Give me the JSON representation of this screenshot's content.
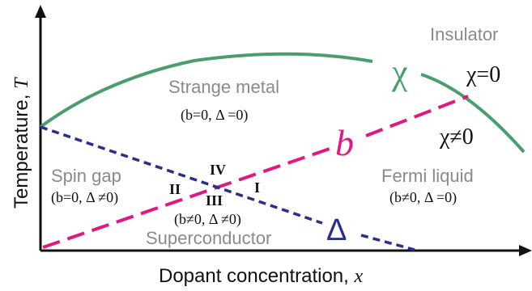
{
  "axes": {
    "y_label_text": "Temperature, ",
    "y_label_var": "T",
    "x_label_text": "Dopant concentration, ",
    "x_label_var": "x"
  },
  "curve_labels": {
    "chi": "χ",
    "b": "b",
    "delta": "Δ"
  },
  "regions": {
    "insulator": "Insulator",
    "chi_zero": "χ=0",
    "chi_nonzero": "χ≠0",
    "strange_metal": "Strange metal",
    "strange_metal_params": "(b=0, Δ =0)",
    "spin_gap": "Spin gap",
    "spin_gap_params": "(b=0, Δ ≠0)",
    "fermi_liquid": "Fermi liquid",
    "fermi_liquid_params": "(b≠0, Δ =0)",
    "superconductor": "Superconductor",
    "superconductor_params": "(b≠0, Δ ≠0)"
  },
  "quadrants": {
    "q1": "I",
    "q2": "II",
    "q3": "III",
    "q4": "IV"
  },
  "colors": {
    "chi_curve": "#4a9e6e",
    "b_line": "#e0187f",
    "delta_line": "#2b2f8c",
    "region_text": "#8a8a8a",
    "axis": "#111111"
  }
}
